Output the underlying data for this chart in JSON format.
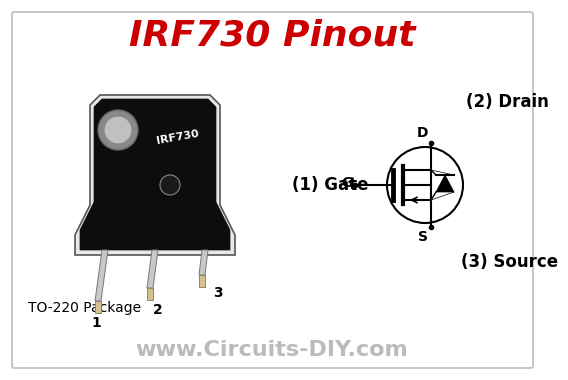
{
  "title": "IRF730 Pinout",
  "title_color": "#cc0000",
  "title_fontsize": 26,
  "title_fontweight": "bold",
  "title_fontstyle": "italic",
  "bg_color": "#ffffff",
  "border_color": "#bbbbbb",
  "label_drain": "(2) Drain",
  "label_gate": "(1) Gate",
  "label_source": "(3) Source",
  "label_package": "TO-220 Package",
  "pin1_label": "1",
  "pin2_label": "2",
  "pin3_label": "3",
  "website": "www.Circuits-DIY.com",
  "website_color": "#bbbbbb",
  "website_fontsize": 16,
  "label_fontsize": 12,
  "pin_fontsize": 10,
  "package_fontsize": 10,
  "mosfet_text": "IRF730"
}
